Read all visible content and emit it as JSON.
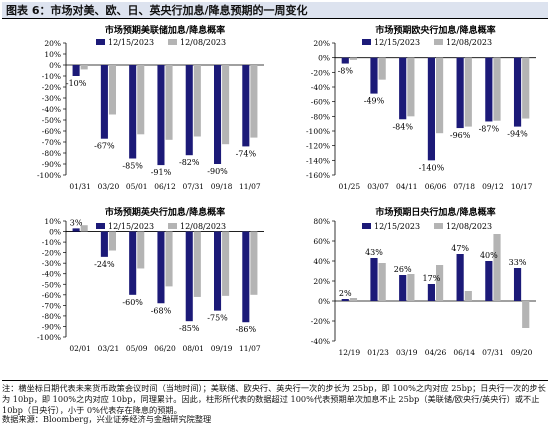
{
  "header": {
    "title": "图表 6：市场对美、欧、日、英央行加息/降息预期的一周变化"
  },
  "footer": {
    "notes": "注：横坐标日期代表未来货币政策会议时间（当地时间）；美联储、欧央行、英央行一次的步长为 25bp，即 100%之内对应 25bp；日央行一次的步长为 10bp，即 100%之内对应 10bp，同理累计。因此，柱形所代表的数据超过 100%代表预期单次加息不止 25bp（美联储/欧央行/英央行）或不止 10bp（日央行），小于 0%代表存在降息的预期。",
    "source": "数据来源：Bloomberg，兴业证券经济与金融研究院整理"
  },
  "legend": {
    "s1": "12/15/2023",
    "s2": "12/08/2023"
  },
  "colors": {
    "s1": "#1c1a78",
    "s2": "#b4b4b4",
    "axis": "#000000"
  },
  "chart_data": [
    {
      "type": "bar",
      "title": "市场预期美联储加息/降息概率",
      "categories": [
        "01/31",
        "03/20",
        "05/01",
        "06/12",
        "07/31",
        "09/18",
        "11/07"
      ],
      "series": [
        {
          "name": "12/15/2023",
          "values": [
            -10,
            -67,
            -85,
            -91,
            -82,
            -90,
            -74
          ]
        },
        {
          "name": "12/08/2023",
          "values": [
            -4,
            -45,
            -63,
            -68,
            -65,
            -72,
            -66
          ]
        }
      ],
      "labels": [
        "-10%",
        "-67%",
        "-85%",
        "-91%",
        "-82%",
        "-90%",
        "-74%"
      ],
      "ylim": [
        -100,
        20
      ],
      "ystep": 10,
      "ytick_decimals": 0,
      "legend_position": "top-left",
      "category_position": "bottom"
    },
    {
      "type": "bar",
      "title": "市场预期欧央行加息/降息概率",
      "categories": [
        "01/25",
        "03/07",
        "04/11",
        "06/06",
        "07/18",
        "09/12",
        "10/17"
      ],
      "series": [
        {
          "name": "12/15/2023",
          "values": [
            -8,
            -49,
            -84,
            -140,
            -96,
            -87,
            -94
          ]
        },
        {
          "name": "12/08/2023",
          "values": [
            -3,
            -30,
            -80,
            -103,
            -94,
            -86,
            -83
          ]
        }
      ],
      "labels": [
        "-8%",
        "-49%",
        "-84%",
        "-140%",
        "-96%",
        "-87%",
        "-94%"
      ],
      "ylim": [
        -160,
        20
      ],
      "ystep": 20,
      "ytick_decimals": 0,
      "legend_position": "top-left",
      "category_position": "bottom"
    },
    {
      "type": "bar",
      "title": "市场预期英央行加息/降息概率",
      "categories": [
        "02/01",
        "03/21",
        "05/09",
        "06/20",
        "08/01",
        "09/19",
        "11/07"
      ],
      "series": [
        {
          "name": "12/15/2023",
          "values": [
            3,
            -24,
            -60,
            -68,
            -85,
            -75,
            -86
          ]
        },
        {
          "name": "12/08/2023",
          "values": [
            6,
            -18,
            -35,
            -52,
            -62,
            -61,
            -60
          ]
        }
      ],
      "labels": [
        "3%",
        "-24%",
        "-60%",
        "-68%",
        "-85%",
        "-75%",
        "-86%"
      ],
      "ylim": [
        -100,
        10
      ],
      "ystep": 10,
      "ytick_decimals": 0,
      "legend_position": "top-left",
      "category_position": "bottom"
    },
    {
      "type": "bar",
      "title": "市场预期日央行加息/降息概率",
      "categories": [
        "12/19",
        "01/23",
        "03/19",
        "04/26",
        "06/14",
        "07/31",
        "09/20"
      ],
      "series": [
        {
          "name": "12/15/2023",
          "values": [
            2,
            43,
            26,
            17,
            47,
            40,
            33
          ]
        },
        {
          "name": "12/08/2023",
          "values": [
            3,
            38,
            27,
            36,
            10,
            67,
            -27
          ]
        }
      ],
      "labels": [
        "2%",
        "43%",
        "26%",
        "17%",
        "47%",
        "40%",
        "33%"
      ],
      "ylim": [
        -40,
        80
      ],
      "ystep": 20,
      "ytick_decimals": 0,
      "legend_position": "top-left",
      "category_position": "bottom"
    }
  ]
}
